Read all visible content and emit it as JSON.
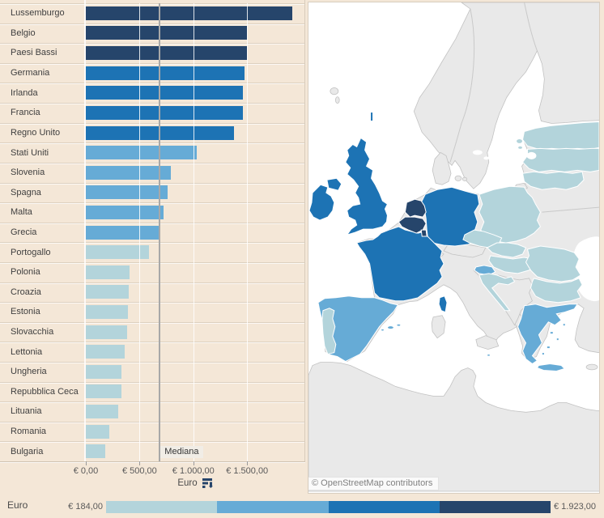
{
  "colors": {
    "q1": "#b3d4db",
    "q2": "#66abd6",
    "q3": "#1d73b4",
    "q4": "#26456b",
    "nodata": "#e9e9e9",
    "nodata_border": "#c2c2c2",
    "sea": "#ffffff",
    "data_border": "#ffffff",
    "median_line": "#a8a8a8",
    "page_bg": "#f4e7d7"
  },
  "chart_data": {
    "type": "bar",
    "orientation": "horizontal",
    "title": "",
    "xlabel": "Euro",
    "ylabel": "",
    "xlim": [
      0,
      2030
    ],
    "x_ticks": [
      0,
      500,
      1000,
      1500
    ],
    "grid": false,
    "median": 683.76,
    "categories": [
      "Lussemburgo",
      "Belgio",
      "Paesi Bassi",
      "Germania",
      "Irlanda",
      "Francia",
      "Regno Unito",
      "Stati Uniti",
      "Slovenia",
      "Spagna",
      "Malta",
      "Grecia",
      "Portogallo",
      "Polonia",
      "Croazia",
      "Estonia",
      "Slovacchia",
      "Lettonia",
      "Ungheria",
      "Repubblica Ceca",
      "Lituania",
      "Romania",
      "Bulgaria"
    ],
    "values": [
      1922.96,
      1501.82,
      1501.8,
      1473.0,
      1461.85,
      1457.52,
      1378.87,
      1035.0,
      790.73,
      756.7,
      720.46,
      683.76,
      589.17,
      409.53,
      395.61,
      390.0,
      380.0,
      360.0,
      332.76,
      331.71,
      300.0,
      217.5,
      184.07
    ],
    "color_classes": [
      "q4",
      "q4",
      "q4",
      "q3",
      "q3",
      "q3",
      "q3",
      "q2",
      "q2",
      "q2",
      "q2",
      "q2",
      "q1",
      "q1",
      "q1",
      "q1",
      "q1",
      "q1",
      "q1",
      "q1",
      "q1",
      "q1",
      "q1"
    ]
  },
  "axis": {
    "tick_labels": [
      "€ 0,00",
      "€ 500,00",
      "€ 1.000,00",
      "€ 1.500,00"
    ],
    "title": "Euro",
    "median_label": "Mediana"
  },
  "map": {
    "attribution": "© OpenStreetMap contributors",
    "country_classes": {
      "uk": "q3",
      "northern-ireland": "q3",
      "shetland": "q3",
      "ireland": "q3",
      "france": "q3",
      "corsica": "q3",
      "germany": "q3",
      "netherlands": "q4",
      "belgium": "q4",
      "luxembourg": "q4",
      "spain": "q2",
      "balearic-1": "q2",
      "balearic-2": "q2",
      "balearic-3": "q2",
      "slovenia": "q2",
      "greece": "q2",
      "crete": "q2",
      "malta": "q2",
      "aegean-1": "q2",
      "aegean-2": "q2",
      "aegean-3": "q2",
      "aegean-4": "q2",
      "aegean-5": "q2",
      "portugal": "q1",
      "poland": "q1",
      "czechia": "q1",
      "slovakia": "q1",
      "hungary": "q1",
      "croatia": "q1",
      "romania": "q1",
      "bulgaria": "q1",
      "estonia": "q1",
      "estonia-island-1": "q1",
      "estonia-island-2": "q1",
      "latvia": "q1",
      "lithuania": "q1",
      "scandinavia": "nodata",
      "denmark": "nodata",
      "denmark-island-1": "nodata",
      "denmark-island-2": "nodata",
      "continent": "nodata",
      "africa": "nodata",
      "faroe-1": "nodata",
      "faroe-2": "nodata",
      "kaliningrad": "nodata",
      "austria": "nodata",
      "switzerland": "nodata",
      "balkans": "nodata",
      "italy-sardinia": "nodata",
      "italy-sicily": "nodata",
      "cyprus": "nodata"
    }
  },
  "legend": {
    "title": "Euro",
    "min_label": "€ 184,00",
    "max_label": "€ 1.923,00",
    "segments": [
      "q1",
      "q2",
      "q3",
      "q4"
    ]
  }
}
